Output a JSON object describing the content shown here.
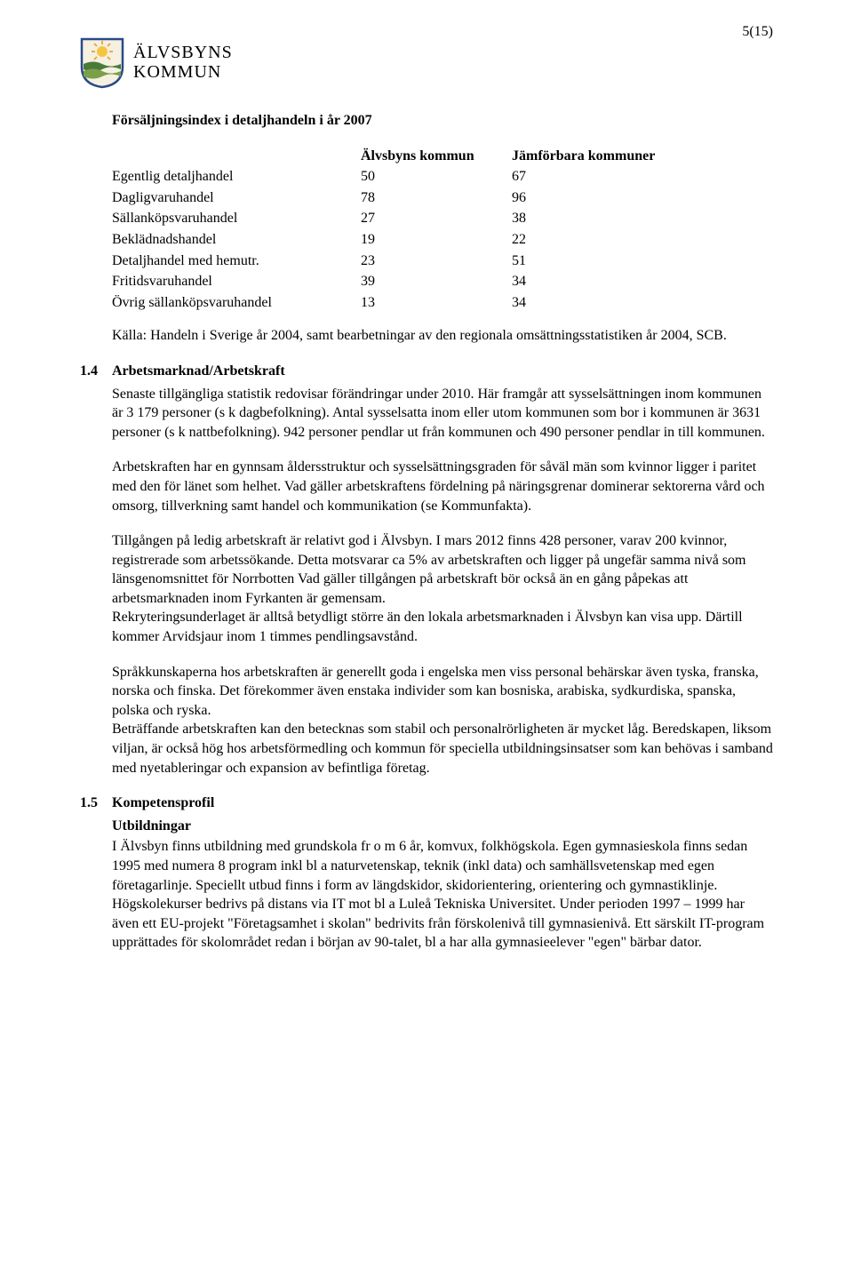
{
  "page_number": "5(15)",
  "org_name_line1": "ÄLVSBYNS",
  "org_name_line2": "KOMMUN",
  "table_title": "Försäljningsindex i detaljhandeln i år 2007",
  "table": {
    "header_col1": "Älvsbyns kommun",
    "header_col2": "Jämförbara kommuner",
    "rows": [
      {
        "label": "Egentlig detaljhandel",
        "v1": "50",
        "v2": "67"
      },
      {
        "label": "Dagligvaruhandel",
        "v1": "78",
        "v2": "96"
      },
      {
        "label": "Sällanköpsvaruhandel",
        "v1": "27",
        "v2": "38"
      },
      {
        "label": "Beklädnadshandel",
        "v1": "19",
        "v2": "22"
      },
      {
        "label": "Detaljhandel med hemutr.",
        "v1": "23",
        "v2": "51"
      },
      {
        "label": "Fritidsvaruhandel",
        "v1": "39",
        "v2": "34"
      },
      {
        "label": "Övrig sällanköpsvaruhandel",
        "v1": "13",
        "v2": "34"
      }
    ]
  },
  "source_line": "Källa: Handeln i Sverige år 2004, samt bearbetningar av den regionala omsättningsstatistiken år 2004, SCB.",
  "section_1_4": {
    "num": "1.4",
    "title": "Arbetsmarknad/Arbetskraft",
    "p1": "Senaste tillgängliga statistik redovisar förändringar under 2010. Här framgår att sysselsättningen inom kommunen är 3 179 personer (s k dagbefolkning). Antal sysselsatta inom eller utom kommunen som bor i kommunen är 3631 personer (s k nattbefolkning). 942 personer pendlar ut från kommunen och 490 personer pendlar in till kommunen.",
    "p2": "Arbetskraften har en gynnsam åldersstruktur och sysselsättningsgraden för såväl män som kvinnor ligger i paritet med den för länet som helhet. Vad gäller arbetskraftens fördelning på näringsgrenar dominerar sektorerna vård och omsorg, tillverkning samt handel och kommunikation (se Kommunfakta).",
    "p3": "Tillgången på ledig arbetskraft är relativt god i Älvsbyn. I mars 2012 finns 428 personer, varav 200 kvinnor, registrerade som arbetssökande. Detta motsvarar ca 5% av arbetskraften och ligger på ungefär samma nivå som länsgenomsnittet för Norrbotten Vad gäller tillgången på arbetskraft bör också än en gång påpekas att arbetsmarknaden inom Fyrkanten är gemensam.",
    "p3b": " Rekryteringsunderlaget är alltså betydligt större än den lokala arbetsmarknaden i Älvsbyn kan visa upp. Därtill kommer Arvidsjaur inom 1 timmes pendlingsavstånd.",
    "p4": "Språkkunskaperna hos arbetskraften är generellt goda i engelska men viss personal behärskar även tyska, franska, norska och finska. Det förekommer även enstaka individer som kan bosniska, arabiska, sydkurdiska, spanska, polska och ryska.",
    "p4b": "Beträffande arbetskraften kan den betecknas som stabil och personalrörligheten är mycket låg. Beredskapen, liksom viljan, är också hög hos arbetsförmedling och kommun för speciella utbildningsinsatser som kan behövas i samband med nyetableringar och expansion av befintliga företag."
  },
  "section_1_5": {
    "num": "1.5",
    "title": "Kompetensprofil",
    "subhead": "Utbildningar",
    "p1": "I Älvsbyn finns utbildning med grundskola fr o m 6 år, komvux, folkhögskola. Egen gymnasieskola finns sedan 1995 med numera 8 program inkl bl a naturvetenskap, teknik (inkl data) och samhällsvetenskap med egen företagarlinje. Speciellt utbud finns i form av längdskidor, skidorientering, orientering och gymnastiklinje. Högskolekurser bedrivs på distans via IT mot bl a Luleå Tekniska Universitet. Under perioden 1997 – 1999 har även ett EU-projekt \"Företagsamhet i skolan\" bedrivits från förskolenivå till gymnasienivå. Ett särskilt IT-program upprättades för skolområdet redan i början av 90-talet, bl a har alla gymnasieelever \"egen\" bärbar dator."
  },
  "logo_colors": {
    "shield_outline": "#2a4a8a",
    "sun_center": "#f5c542",
    "sun_ray": "#e8a23a",
    "wave_top": "#4a7a3a",
    "wave_mid": "#7aa04a",
    "shield_fill": "#f5f0e0"
  }
}
